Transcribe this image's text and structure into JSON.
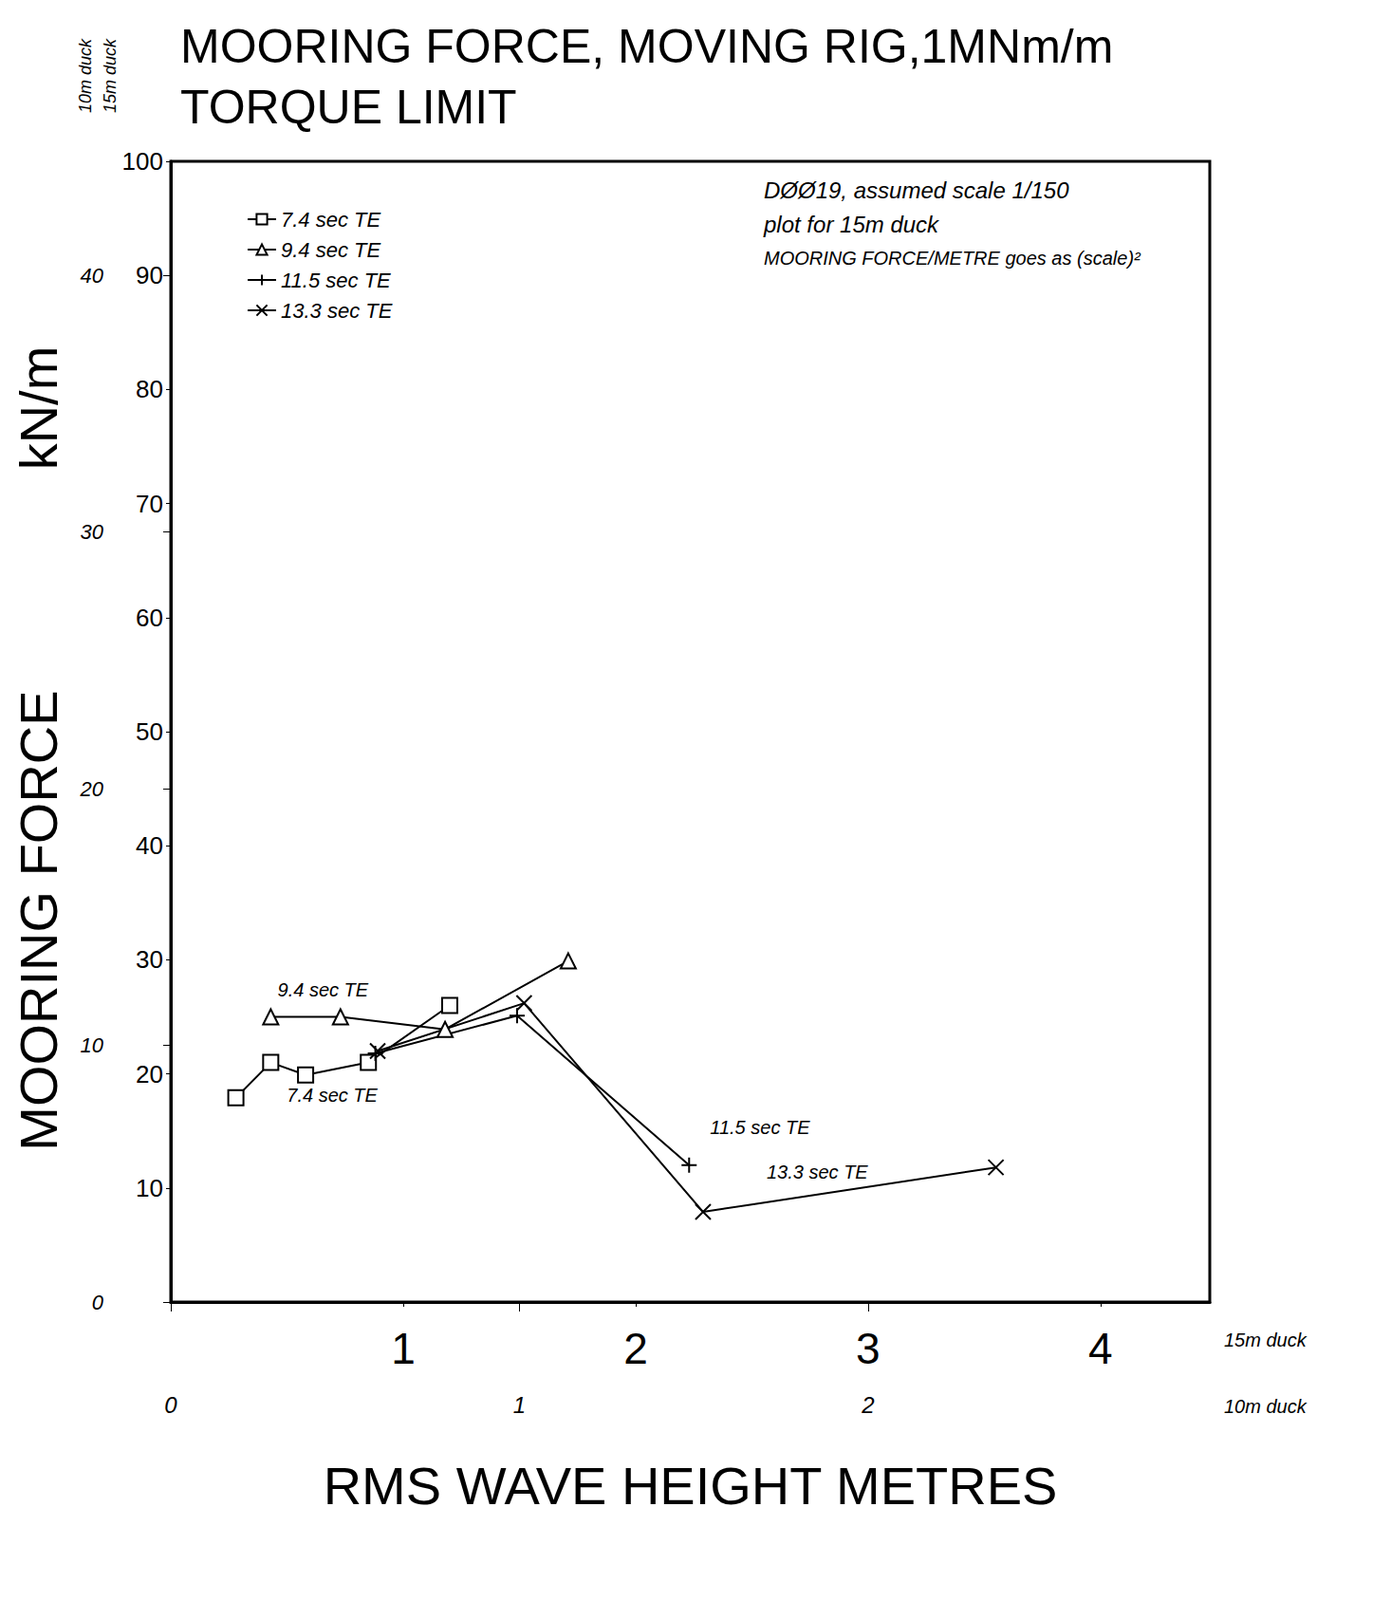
{
  "chart_data": {
    "type": "line",
    "title": "MOORING FORCE, MOVING RIG,1MNm/m TORQUE LIMIT",
    "x_label": "RMS WAVE HEIGHT METRES",
    "y_label": "MOORING FORCE",
    "y_unit": "kN/m",
    "x_axis_note": "15m duck",
    "x2_axis_note": "10m duck",
    "y_axis_note": "15m duck",
    "y2_axis_note": "10m duck",
    "annotations": [
      "DØØ19, assumed scale 1/150",
      "plot for 15m duck",
      "MOORING FORCE/METRE goes as (scale)²"
    ],
    "xlim": [
      0,
      4.47
    ],
    "xticks": [
      1,
      2,
      3,
      4
    ],
    "x2lim": [
      0,
      2.98
    ],
    "x2ticks": [
      0,
      1,
      2
    ],
    "ylim": [
      0,
      100
    ],
    "yticks": [
      10,
      20,
      30,
      40,
      50,
      60,
      70,
      80,
      90,
      100
    ],
    "y2lim": [
      0,
      44.44
    ],
    "y2ticks": [
      0,
      10,
      20,
      30,
      40
    ],
    "grid": false,
    "legend": "top-left",
    "series": [
      {
        "name": "7.4 sec TE",
        "color": "#000000",
        "marker": "square",
        "x": [
          0.28,
          0.43,
          0.58,
          0.85,
          1.2
        ],
        "values": [
          17.9,
          21.0,
          19.9,
          21.0,
          26.0
        ]
      },
      {
        "name": "9.4 sec TE",
        "color": "#000000",
        "marker": "triangle",
        "x": [
          0.43,
          0.73,
          1.18,
          1.71
        ],
        "values": [
          25.0,
          25.0,
          23.9,
          29.9
        ]
      },
      {
        "name": "11.5 sec TE",
        "color": "#000000",
        "marker": "plus",
        "x": [
          0.88,
          1.49,
          2.23
        ],
        "values": [
          21.8,
          25.1,
          12.0
        ]
      },
      {
        "name": "13.3 sec TE",
        "color": "#000000",
        "marker": "x",
        "x": [
          0.89,
          1.52,
          2.29,
          3.55
        ],
        "values": [
          22.0,
          26.2,
          7.9,
          11.8
        ]
      }
    ]
  }
}
